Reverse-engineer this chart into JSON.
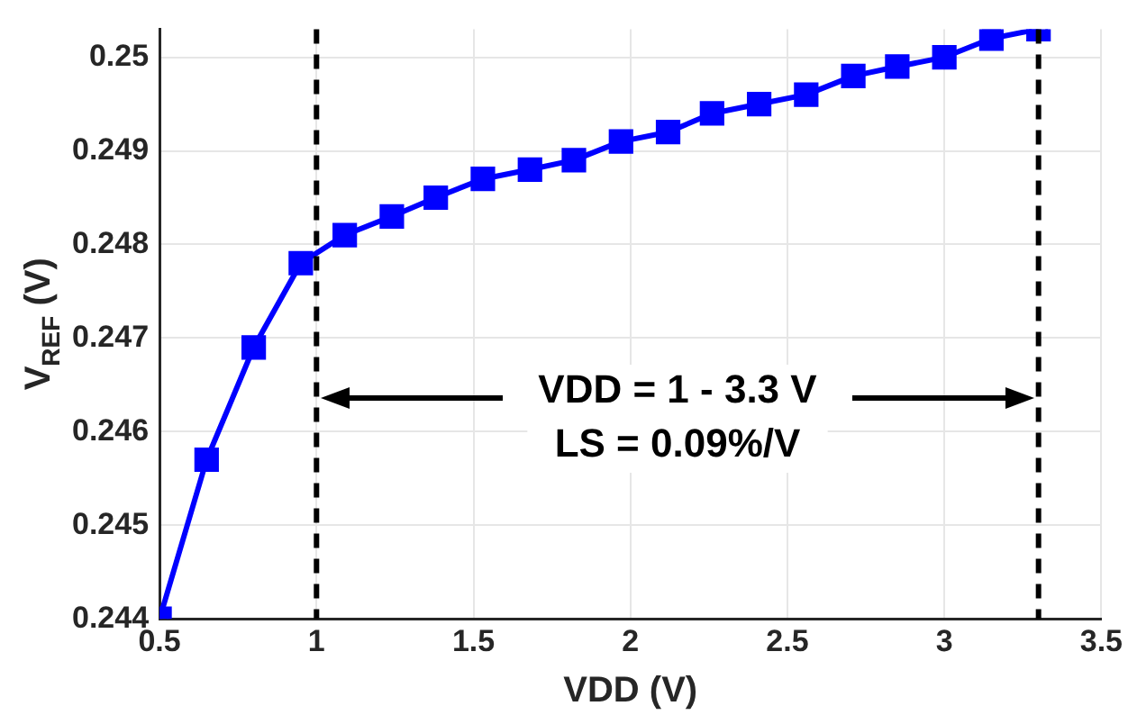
{
  "chart_data": {
    "type": "line",
    "xlabel": "VDD (V)",
    "ylabel": "V$_{REF}$ (V)",
    "x": [
      0.5,
      0.65,
      0.8,
      0.95,
      1.09,
      1.24,
      1.38,
      1.53,
      1.68,
      1.82,
      1.97,
      2.12,
      2.26,
      2.41,
      2.56,
      2.71,
      2.85,
      3.0,
      3.15,
      3.3
    ],
    "series": [
      {
        "color": "#0000ff",
        "values": [
          0.244,
          0.2457,
          0.2469,
          0.2478,
          0.2481,
          0.2483,
          0.2485,
          0.2487,
          0.2488,
          0.2489,
          0.2491,
          0.2492,
          0.2494,
          0.2495,
          0.2496,
          0.2498,
          0.2499,
          0.25,
          0.2502,
          0.2503
        ]
      }
    ],
    "xlim": [
      0.5,
      3.5
    ],
    "xticks": [
      0.5,
      1,
      1.5,
      2,
      2.5,
      3,
      3.5
    ],
    "ylim": [
      0.244,
      0.2503
    ],
    "yticks": [
      0.244,
      0.245,
      0.246,
      0.247,
      0.248,
      0.249,
      0.25
    ],
    "ref_lines": [
      {
        "axis": "x",
        "value": 1,
        "color": "#000000",
        "line_style": "dashed"
      },
      {
        "axis": "x",
        "value": 3.3,
        "color": "#000000",
        "line_style": "dashed"
      }
    ],
    "annotations": [
      "VDD = 1 - 3.3 V",
      "LS = 0.09%/V"
    ],
    "grid": true,
    "legend": false,
    "marker": "square",
    "line_style": "solid"
  }
}
